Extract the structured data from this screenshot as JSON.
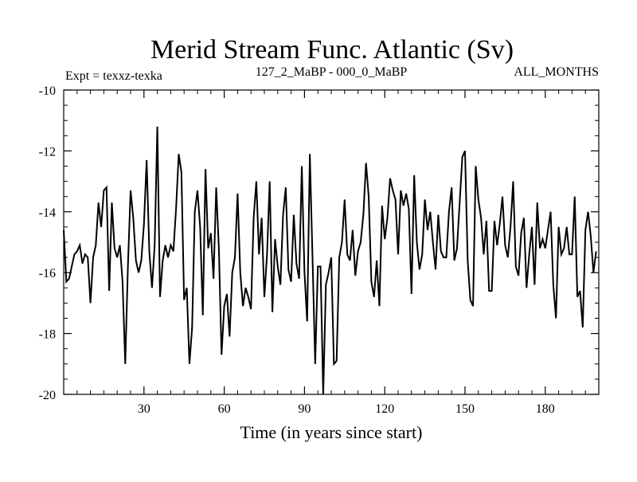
{
  "chart_data": {
    "type": "line",
    "title": "Merid Stream Func. Atlantic (Sv)",
    "subtitle_left": "Expt = texxz-texka",
    "subtitle_center": "127_2_MaBP - 000_0_MaBP",
    "subtitle_right": "ALL_MONTHS",
    "xlabel": "Time (in years since start)",
    "ylabel": "",
    "xlim": [
      0,
      200
    ],
    "ylim": [
      -20,
      -10
    ],
    "xticks": [
      30,
      60,
      90,
      120,
      150,
      180
    ],
    "yticks": [
      -10,
      -12,
      -14,
      -16,
      -18,
      -20
    ],
    "series": [
      {
        "name": "Merid Stream Func. Atlantic",
        "x_start": 0,
        "x_step": 1,
        "values": [
          -14.6,
          -16.3,
          -16.2,
          -15.8,
          -15.4,
          -15.3,
          -15.1,
          -15.7,
          -15.4,
          -15.5,
          -17.0,
          -15.5,
          -15.1,
          -13.7,
          -14.5,
          -13.3,
          -13.2,
          -16.6,
          -13.7,
          -15.2,
          -15.5,
          -15.1,
          -16.3,
          -19.0,
          -15.8,
          -13.3,
          -14.2,
          -15.6,
          -16.0,
          -15.6,
          -14.4,
          -12.3,
          -15.3,
          -16.5,
          -15.1,
          -11.2,
          -16.8,
          -15.6,
          -15.1,
          -15.5,
          -15.1,
          -15.3,
          -13.9,
          -12.1,
          -12.7,
          -16.9,
          -16.5,
          -19.0,
          -17.8,
          -14.0,
          -13.3,
          -14.5,
          -17.4,
          -12.6,
          -15.2,
          -14.7,
          -16.2,
          -13.2,
          -15.2,
          -18.7,
          -17.1,
          -16.7,
          -18.1,
          -16.0,
          -15.5,
          -13.4,
          -16.0,
          -17.1,
          -16.5,
          -16.8,
          -17.2,
          -14.2,
          -13.0,
          -15.4,
          -14.2,
          -16.8,
          -15.4,
          -13.0,
          -17.3,
          -14.9,
          -15.8,
          -16.4,
          -14.1,
          -13.2,
          -15.9,
          -16.3,
          -14.1,
          -15.7,
          -16.2,
          -12.5,
          -16.0,
          -17.6,
          -12.1,
          -15.5,
          -19.0,
          -15.8,
          -15.8,
          -20.0,
          -16.4,
          -16.0,
          -15.5,
          -19.0,
          -18.9,
          -15.5,
          -15.0,
          -13.6,
          -15.4,
          -15.6,
          -14.6,
          -16.1,
          -15.3,
          -15.0,
          -14.1,
          -12.4,
          -13.5,
          -16.3,
          -16.8,
          -15.6,
          -17.1,
          -13.8,
          -14.9,
          -14.2,
          -12.9,
          -13.3,
          -13.6,
          -15.4,
          -13.3,
          -13.8,
          -13.4,
          -13.9,
          -16.7,
          -12.8,
          -15.0,
          -15.9,
          -15.4,
          -13.6,
          -14.6,
          -14.0,
          -15.0,
          -15.9,
          -14.1,
          -15.3,
          -15.5,
          -15.5,
          -14.0,
          -13.2,
          -15.6,
          -15.2,
          -13.7,
          -12.2,
          -12.0,
          -15.6,
          -16.9,
          -17.1,
          -12.5,
          -13.6,
          -14.2,
          -15.4,
          -14.3,
          -16.6,
          -16.6,
          -14.3,
          -15.1,
          -14.4,
          -13.5,
          -15.1,
          -15.5,
          -14.5,
          -13.0,
          -15.8,
          -16.1,
          -14.7,
          -14.2,
          -16.5,
          -15.4,
          -14.5,
          -16.4,
          -13.7,
          -15.2,
          -14.9,
          -15.2,
          -14.6,
          -14.0,
          -16.4,
          -17.5,
          -14.5,
          -15.4,
          -15.2,
          -14.5,
          -15.4,
          -15.4,
          -13.5,
          -16.8,
          -16.6,
          -17.8,
          -14.6,
          -14.0,
          -14.8,
          -16.0,
          -15.3
        ]
      }
    ]
  }
}
